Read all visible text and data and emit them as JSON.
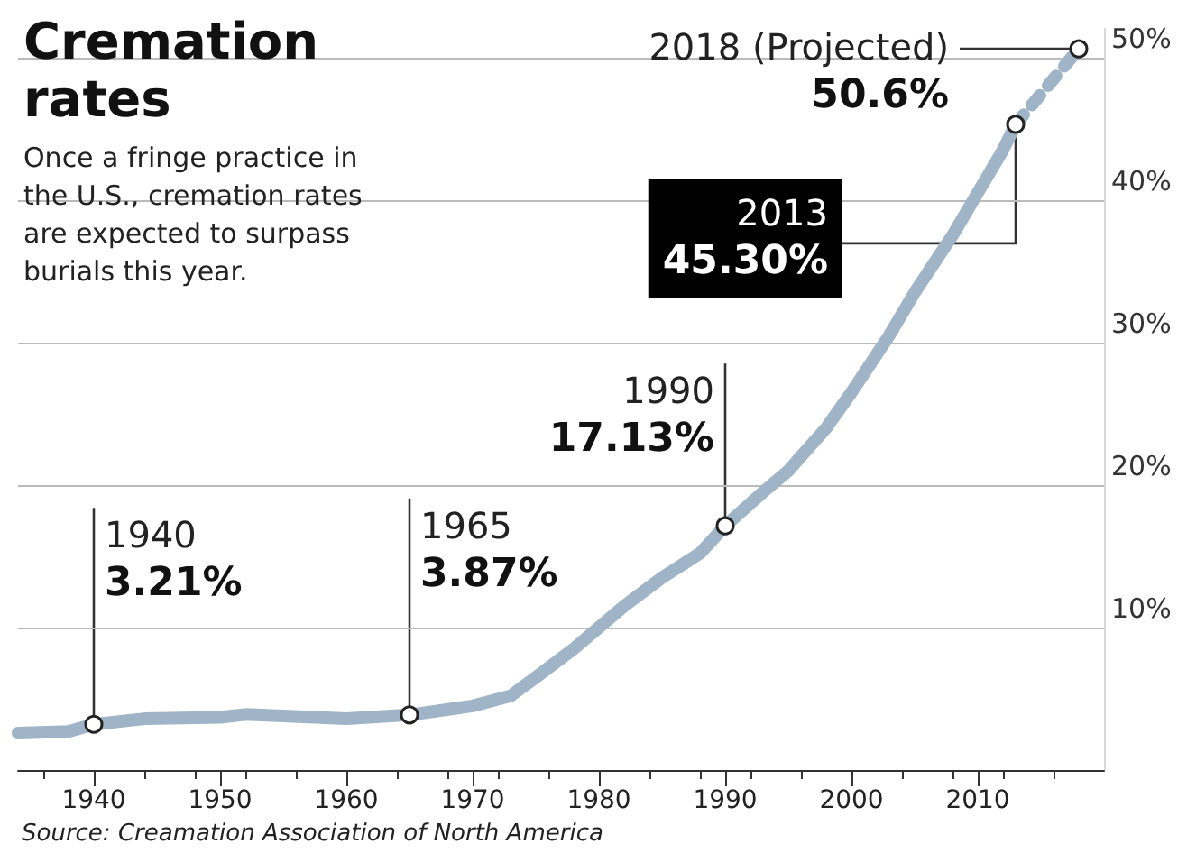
{
  "chart_data": {
    "type": "line",
    "title": "Cremation rates",
    "subtitle": "Once a fringe practice in the U.S., cremation rates are expected to surpass burials this year.",
    "series": [
      {
        "color": "#9fb4c6",
        "line_style": "solid",
        "x": [
          1934,
          1938,
          1940,
          1944,
          1950,
          1952,
          1955,
          1960,
          1965,
          1970,
          1973,
          1975,
          1978,
          1980,
          1982,
          1985,
          1988,
          1990,
          1993,
          1995,
          1998,
          2000,
          2003,
          2005,
          2008,
          2010,
          2012,
          2013
        ],
        "values": [
          2.6,
          2.7,
          3.21,
          3.6,
          3.7,
          3.9,
          3.8,
          3.6,
          3.87,
          4.5,
          5.2,
          6.5,
          8.5,
          10.0,
          11.5,
          13.5,
          15.2,
          17.13,
          19.5,
          21.0,
          24.0,
          26.5,
          30.5,
          33.5,
          37.5,
          40.5,
          43.5,
          45.3
        ]
      },
      {
        "color": "#9fb4c6",
        "line_style": "dotted",
        "x": [
          2013,
          2018
        ],
        "values": [
          45.3,
          50.6
        ]
      }
    ],
    "xlim": [
      1934,
      2020
    ],
    "xticks": [
      1940,
      1950,
      1960,
      1970,
      1980,
      1990,
      2000,
      2010
    ],
    "ylim": [
      0,
      52
    ],
    "yticks": [
      {
        "value": 10,
        "label": "10%"
      },
      {
        "value": 20,
        "label": "20%"
      },
      {
        "value": 30,
        "label": "30%"
      },
      {
        "value": 40,
        "label": "40%"
      },
      {
        "value": 50,
        "label": "50%"
      }
    ],
    "grid": "y",
    "annotations": [
      {
        "text": "1940\n3.21%",
        "x": 1940,
        "y": 3.21
      },
      {
        "text": "1965\n3.87%",
        "x": 1965,
        "y": 3.87
      },
      {
        "text": "1990\n17.13%",
        "x": 1990,
        "y": 17.13
      },
      {
        "text": "2013\n45.30%",
        "x": 2013,
        "y": 45.3
      },
      {
        "text": "2018 (Projected)\n50.6%",
        "x": 2018,
        "y": 50.6
      },
      "Source: Creamation Association of North America"
    ]
  }
}
